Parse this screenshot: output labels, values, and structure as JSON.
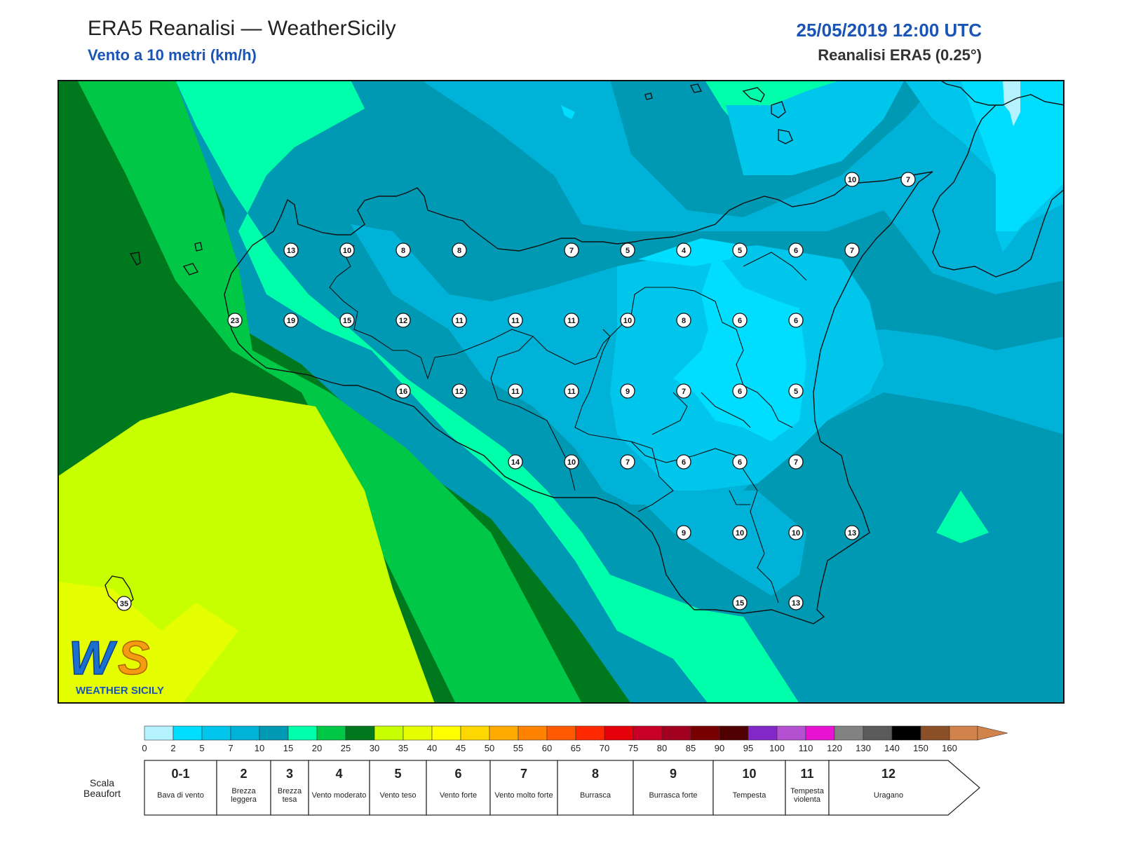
{
  "header": {
    "title": "ERA5 Reanalisi — WeatherSicily",
    "subtitle": "Vento a 10 metri (km/h)",
    "datetime": "25/05/2019 12:00 UTC",
    "resolution": "Reanalisi ERA5 (0.25°)"
  },
  "logo": {
    "text": "WEATHER SICILY",
    "mark": "WS"
  },
  "map": {
    "stations": [
      {
        "v": "13",
        "c": [
          415,
          357
        ]
      },
      {
        "v": "10",
        "c": [
          495,
          357
        ]
      },
      {
        "v": "8",
        "c": [
          575,
          357
        ]
      },
      {
        "v": "8",
        "c": [
          655,
          357
        ]
      },
      {
        "v": "7",
        "c": [
          815,
          357
        ]
      },
      {
        "v": "5",
        "c": [
          895,
          357
        ]
      },
      {
        "v": "4",
        "c": [
          975,
          357
        ]
      },
      {
        "v": "5",
        "c": [
          1055,
          357
        ]
      },
      {
        "v": "6",
        "c": [
          1135,
          357
        ]
      },
      {
        "v": "7",
        "c": [
          1215,
          357
        ]
      },
      {
        "v": "10",
        "c": [
          1215,
          256
        ]
      },
      {
        "v": "7",
        "c": [
          1295,
          256
        ]
      },
      {
        "v": "23",
        "c": [
          335,
          457
        ]
      },
      {
        "v": "19",
        "c": [
          415,
          457
        ]
      },
      {
        "v": "15",
        "c": [
          495,
          457
        ]
      },
      {
        "v": "12",
        "c": [
          575,
          457
        ]
      },
      {
        "v": "11",
        "c": [
          655,
          457
        ]
      },
      {
        "v": "11",
        "c": [
          735,
          457
        ]
      },
      {
        "v": "11",
        "c": [
          815,
          457
        ]
      },
      {
        "v": "10",
        "c": [
          895,
          457
        ]
      },
      {
        "v": "8",
        "c": [
          975,
          457
        ]
      },
      {
        "v": "6",
        "c": [
          1055,
          457
        ]
      },
      {
        "v": "6",
        "c": [
          1135,
          457
        ]
      },
      {
        "v": "16",
        "c": [
          575,
          558
        ]
      },
      {
        "v": "12",
        "c": [
          655,
          558
        ]
      },
      {
        "v": "11",
        "c": [
          735,
          558
        ]
      },
      {
        "v": "11",
        "c": [
          815,
          558
        ]
      },
      {
        "v": "9",
        "c": [
          895,
          558
        ]
      },
      {
        "v": "7",
        "c": [
          975,
          558
        ]
      },
      {
        "v": "6",
        "c": [
          1055,
          558
        ]
      },
      {
        "v": "5",
        "c": [
          1135,
          558
        ]
      },
      {
        "v": "14",
        "c": [
          735,
          659
        ]
      },
      {
        "v": "10",
        "c": [
          815,
          659
        ]
      },
      {
        "v": "7",
        "c": [
          895,
          659
        ]
      },
      {
        "v": "6",
        "c": [
          975,
          659
        ]
      },
      {
        "v": "6",
        "c": [
          1055,
          659
        ]
      },
      {
        "v": "7",
        "c": [
          1135,
          659
        ]
      },
      {
        "v": "9",
        "c": [
          975,
          760
        ]
      },
      {
        "v": "10",
        "c": [
          1055,
          760
        ]
      },
      {
        "v": "10",
        "c": [
          1135,
          760
        ]
      },
      {
        "v": "13",
        "c": [
          1215,
          760
        ]
      },
      {
        "v": "15",
        "c": [
          1055,
          860
        ]
      },
      {
        "v": "13",
        "c": [
          1135,
          860
        ]
      },
      {
        "v": "35",
        "c": [
          177,
          861
        ]
      }
    ]
  },
  "colorbar": {
    "ticks": [
      "0",
      "2",
      "5",
      "7",
      "10",
      "15",
      "20",
      "25",
      "30",
      "35",
      "40",
      "45",
      "50",
      "55",
      "60",
      "65",
      "70",
      "75",
      "80",
      "85",
      "90",
      "95",
      "100",
      "110",
      "120",
      "130",
      "140",
      "150",
      "160"
    ],
    "colors": [
      "#b4f2ff",
      "#00ddff",
      "#00c6ec",
      "#00b2d8",
      "#0099b4",
      "#00ffaa",
      "#00c846",
      "#00781e",
      "#c8ff00",
      "#e6ff00",
      "#ffff00",
      "#ffd700",
      "#ffaa00",
      "#ff8200",
      "#ff5a00",
      "#ff2800",
      "#e6000a",
      "#c80028",
      "#a0001e",
      "#780000",
      "#500000",
      "#8228c8",
      "#b450d2",
      "#e614d2",
      "#828282",
      "#5a5a5a",
      "#000000",
      "#8c5028",
      "#d2824b"
    ]
  },
  "beaufort": {
    "title": "Scala Beaufort",
    "cells": [
      {
        "force": "0-1",
        "label": "Bava di vento"
      },
      {
        "force": "2",
        "label": "Brezza leggera"
      },
      {
        "force": "3",
        "label": "Brezza tesa"
      },
      {
        "force": "4",
        "label": "Vento moderato"
      },
      {
        "force": "5",
        "label": "Vento teso"
      },
      {
        "force": "6",
        "label": "Vento forte"
      },
      {
        "force": "7",
        "label": "Vento molto forte"
      },
      {
        "force": "8",
        "label": "Burrasca"
      },
      {
        "force": "9",
        "label": "Burrasca forte"
      },
      {
        "force": "10",
        "label": "Tempesta"
      },
      {
        "force": "11",
        "label": "Tempesta violenta"
      },
      {
        "force": "12",
        "label": "Uragano"
      }
    ]
  }
}
